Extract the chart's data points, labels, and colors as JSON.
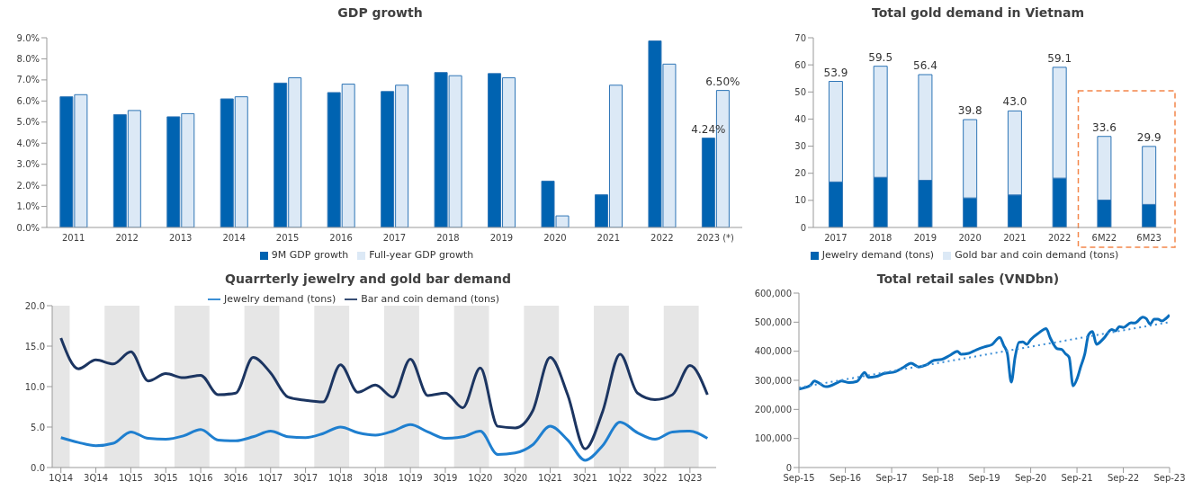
{
  "chart_data": [
    {
      "type": "bar",
      "title": "GDP growth",
      "categories": [
        "2011",
        "2012",
        "2013",
        "2014",
        "2015",
        "2016",
        "2017",
        "2018",
        "2019",
        "2020",
        "2021",
        "2022",
        "2023 (*)"
      ],
      "series": [
        {
          "name": "9M GDP growth",
          "color": "#0063b1",
          "values": [
            6.2,
            5.35,
            5.25,
            6.1,
            6.85,
            6.4,
            6.45,
            7.35,
            7.3,
            2.2,
            1.55,
            8.85,
            4.24
          ],
          "value_labels": [
            null,
            null,
            null,
            null,
            null,
            null,
            null,
            null,
            null,
            null,
            null,
            null,
            "4.24%"
          ]
        },
        {
          "name": "Full-year GDP growth",
          "color": "#dce9f6",
          "values": [
            6.3,
            5.55,
            5.4,
            6.2,
            7.1,
            6.8,
            6.75,
            7.2,
            7.1,
            0.55,
            6.75,
            7.75,
            6.5
          ],
          "value_labels": [
            null,
            null,
            null,
            null,
            null,
            null,
            null,
            null,
            null,
            null,
            null,
            null,
            "6.50%"
          ]
        }
      ],
      "ylim": [
        0,
        9
      ],
      "yticks": [
        {
          "value": 0,
          "label": "0.0%"
        },
        {
          "value": 1,
          "label": "1.0%"
        },
        {
          "value": 2,
          "label": "2.0%"
        },
        {
          "value": 3,
          "label": "3.0%"
        },
        {
          "value": 4,
          "label": "4.0%"
        },
        {
          "value": 5,
          "label": "5.0%"
        },
        {
          "value": 6,
          "label": "6.0%"
        },
        {
          "value": 7,
          "label": "7.0%"
        },
        {
          "value": 8,
          "label": "8.0%"
        },
        {
          "value": 9,
          "label": "9.0%"
        }
      ],
      "legend": "bottom"
    },
    {
      "type": "bar",
      "title": "Total gold demand in Vietnam",
      "categories": [
        "2017",
        "2018",
        "2019",
        "2020",
        "2021",
        "2022",
        "6M22",
        "6M23"
      ],
      "stacked": true,
      "series": [
        {
          "name": "Jewelry demand (tons)",
          "color": "#0063b1",
          "values": [
            16.8,
            18.5,
            17.4,
            10.9,
            12.0,
            18.2,
            10.1,
            8.5
          ]
        },
        {
          "name": "Gold bar and coin demand (tons)",
          "color": "#dce9f6",
          "values": [
            37.1,
            41.0,
            39.0,
            28.9,
            31.0,
            40.9,
            23.5,
            21.4
          ]
        }
      ],
      "totals": [
        "53.9",
        "59.5",
        "56.4",
        "39.8",
        "43.0",
        "59.1",
        "33.6",
        "29.9"
      ],
      "ylim": [
        0,
        70
      ],
      "yticks": [
        0,
        10,
        20,
        30,
        40,
        50,
        60,
        70
      ],
      "legend": "bottom"
    },
    {
      "type": "line",
      "title": "Quarrterly jewelry and gold bar demand",
      "categories": [
        "1Q14",
        null,
        "3Q14",
        null,
        "1Q15",
        null,
        "3Q15",
        null,
        "1Q16",
        null,
        "3Q16",
        null,
        "1Q17",
        null,
        "3Q17",
        null,
        "1Q18",
        null,
        "3Q18",
        null,
        "1Q19",
        null,
        "3Q19",
        null,
        "1Q20",
        null,
        "3Q20",
        null,
        "1Q21",
        null,
        "3Q21",
        null,
        "1Q22",
        null,
        "3Q22",
        null,
        "1Q23",
        null
      ],
      "series": [
        {
          "name": "Jewelry demand (tons)",
          "color": "#1f7fcf",
          "values": [
            3.7,
            3.1,
            2.7,
            3.0,
            4.4,
            3.6,
            3.5,
            3.9,
            4.7,
            3.4,
            3.3,
            3.8,
            4.5,
            3.8,
            3.7,
            4.2,
            5.0,
            4.3,
            4.0,
            4.5,
            5.3,
            4.4,
            3.6,
            3.8,
            4.5,
            1.6,
            1.8,
            2.8,
            5.1,
            3.4,
            0.9,
            2.7,
            5.6,
            4.3,
            3.5,
            4.4,
            4.5,
            3.6
          ]
        },
        {
          "name": "Bar and coin demand (tons)",
          "color": "#1c3561",
          "values": [
            16.0,
            12.2,
            13.3,
            12.8,
            14.3,
            10.7,
            11.6,
            11.1,
            11.4,
            9.0,
            9.2,
            13.6,
            11.7,
            8.7,
            8.3,
            8.1,
            12.7,
            9.3,
            10.2,
            8.7,
            13.4,
            8.9,
            9.2,
            7.4,
            12.3,
            5.1,
            4.9,
            7.0,
            13.6,
            9.0,
            2.3,
            6.9,
            14.0,
            9.2,
            8.4,
            9.0,
            12.6,
            9.0
          ]
        }
      ],
      "ylim": [
        0,
        20
      ],
      "yticks": [
        {
          "value": 0,
          "label": "0.0"
        },
        {
          "value": 5,
          "label": "5.0"
        },
        {
          "value": 10,
          "label": "10.0"
        },
        {
          "value": 15,
          "label": "15.0"
        },
        {
          "value": 20,
          "label": "20.0"
        }
      ],
      "marker": "none",
      "legend": "top"
    },
    {
      "type": "line",
      "title": "Total retail sales (VNDbn)",
      "series": [
        {
          "color": "#0a6ebd",
          "x": [
            "2015-09",
            "2015-12",
            "2016-01",
            "2016-04",
            "2016-07",
            "2016-08",
            "2016-10",
            "2016-12",
            "2017-02",
            "2017-03",
            "2017-05",
            "2017-07",
            "2017-10",
            "2017-12",
            "2018-02",
            "2018-04",
            "2018-06",
            "2018-08",
            "2018-10",
            "2018-12",
            "2019-02",
            "2019-03",
            "2019-05",
            "2019-07",
            "2019-09",
            "2019-11",
            "2020-01",
            "2020-02",
            "2020-03",
            "2020-04",
            "2020-05",
            "2020-06",
            "2020-07",
            "2020-08",
            "2020-09",
            "2020-11",
            "2021-01",
            "2021-02",
            "2021-04",
            "2021-05",
            "2021-06",
            "2021-07",
            "2021-08",
            "2021-09",
            "2021-10",
            "2021-11",
            "2021-12",
            "2022-01",
            "2022-02",
            "2022-04",
            "2022-06",
            "2022-07",
            "2022-08",
            "2022-09",
            "2022-11",
            "2022-12",
            "2023-02",
            "2023-03",
            "2023-04",
            "2023-05",
            "2023-06",
            "2023-07",
            "2023-08",
            "2023-09"
          ],
          "values": [
            270000,
            283000,
            298000,
            278000,
            292000,
            298000,
            292000,
            296000,
            327000,
            310000,
            313000,
            323000,
            330000,
            344000,
            359000,
            346000,
            353000,
            369000,
            372000,
            385000,
            400000,
            390000,
            393000,
            405000,
            415000,
            423000,
            448000,
            420000,
            392000,
            294000,
            380000,
            431000,
            432000,
            424000,
            440000,
            462000,
            478000,
            447000,
            408000,
            407000,
            392000,
            379000,
            281000,
            305000,
            348000,
            390000,
            457000,
            468000,
            424000,
            445000,
            475000,
            470000,
            485000,
            482000,
            498000,
            497000,
            517000,
            512000,
            493000,
            510000,
            510000,
            504000,
            512000,
            525000
          ]
        },
        {
          "type": "line",
          "color": "#3d8fd6",
          "line_style": "dotted",
          "x": [
            "2015-09",
            "2023-09"
          ],
          "values": [
            275000,
            500000
          ]
        }
      ],
      "xlim": [
        "2015-09",
        "2023-09"
      ],
      "xticks": [
        {
          "value": "2015-09",
          "label": "Sep-15"
        },
        {
          "value": "2016-09",
          "label": "Sep-16"
        },
        {
          "value": "2017-09",
          "label": "Sep-17"
        },
        {
          "value": "2018-09",
          "label": "Sep-18"
        },
        {
          "value": "2019-09",
          "label": "Sep-19"
        },
        {
          "value": "2020-09",
          "label": "Sep-20"
        },
        {
          "value": "2021-09",
          "label": "Sep-21"
        },
        {
          "value": "2022-09",
          "label": "Sep-22"
        },
        {
          "value": "2023-09",
          "label": "Sep-23"
        }
      ],
      "ylim": [
        0,
        600000
      ],
      "yticks": [
        {
          "value": 0,
          "label": "0"
        },
        {
          "value": 100000,
          "label": "100,000"
        },
        {
          "value": 200000,
          "label": "200,000"
        },
        {
          "value": 300000,
          "label": "300,000"
        },
        {
          "value": 400000,
          "label": "400,000"
        },
        {
          "value": 500000,
          "label": "500,000"
        },
        {
          "value": 600000,
          "label": "600,000"
        }
      ],
      "marker": "none"
    }
  ]
}
